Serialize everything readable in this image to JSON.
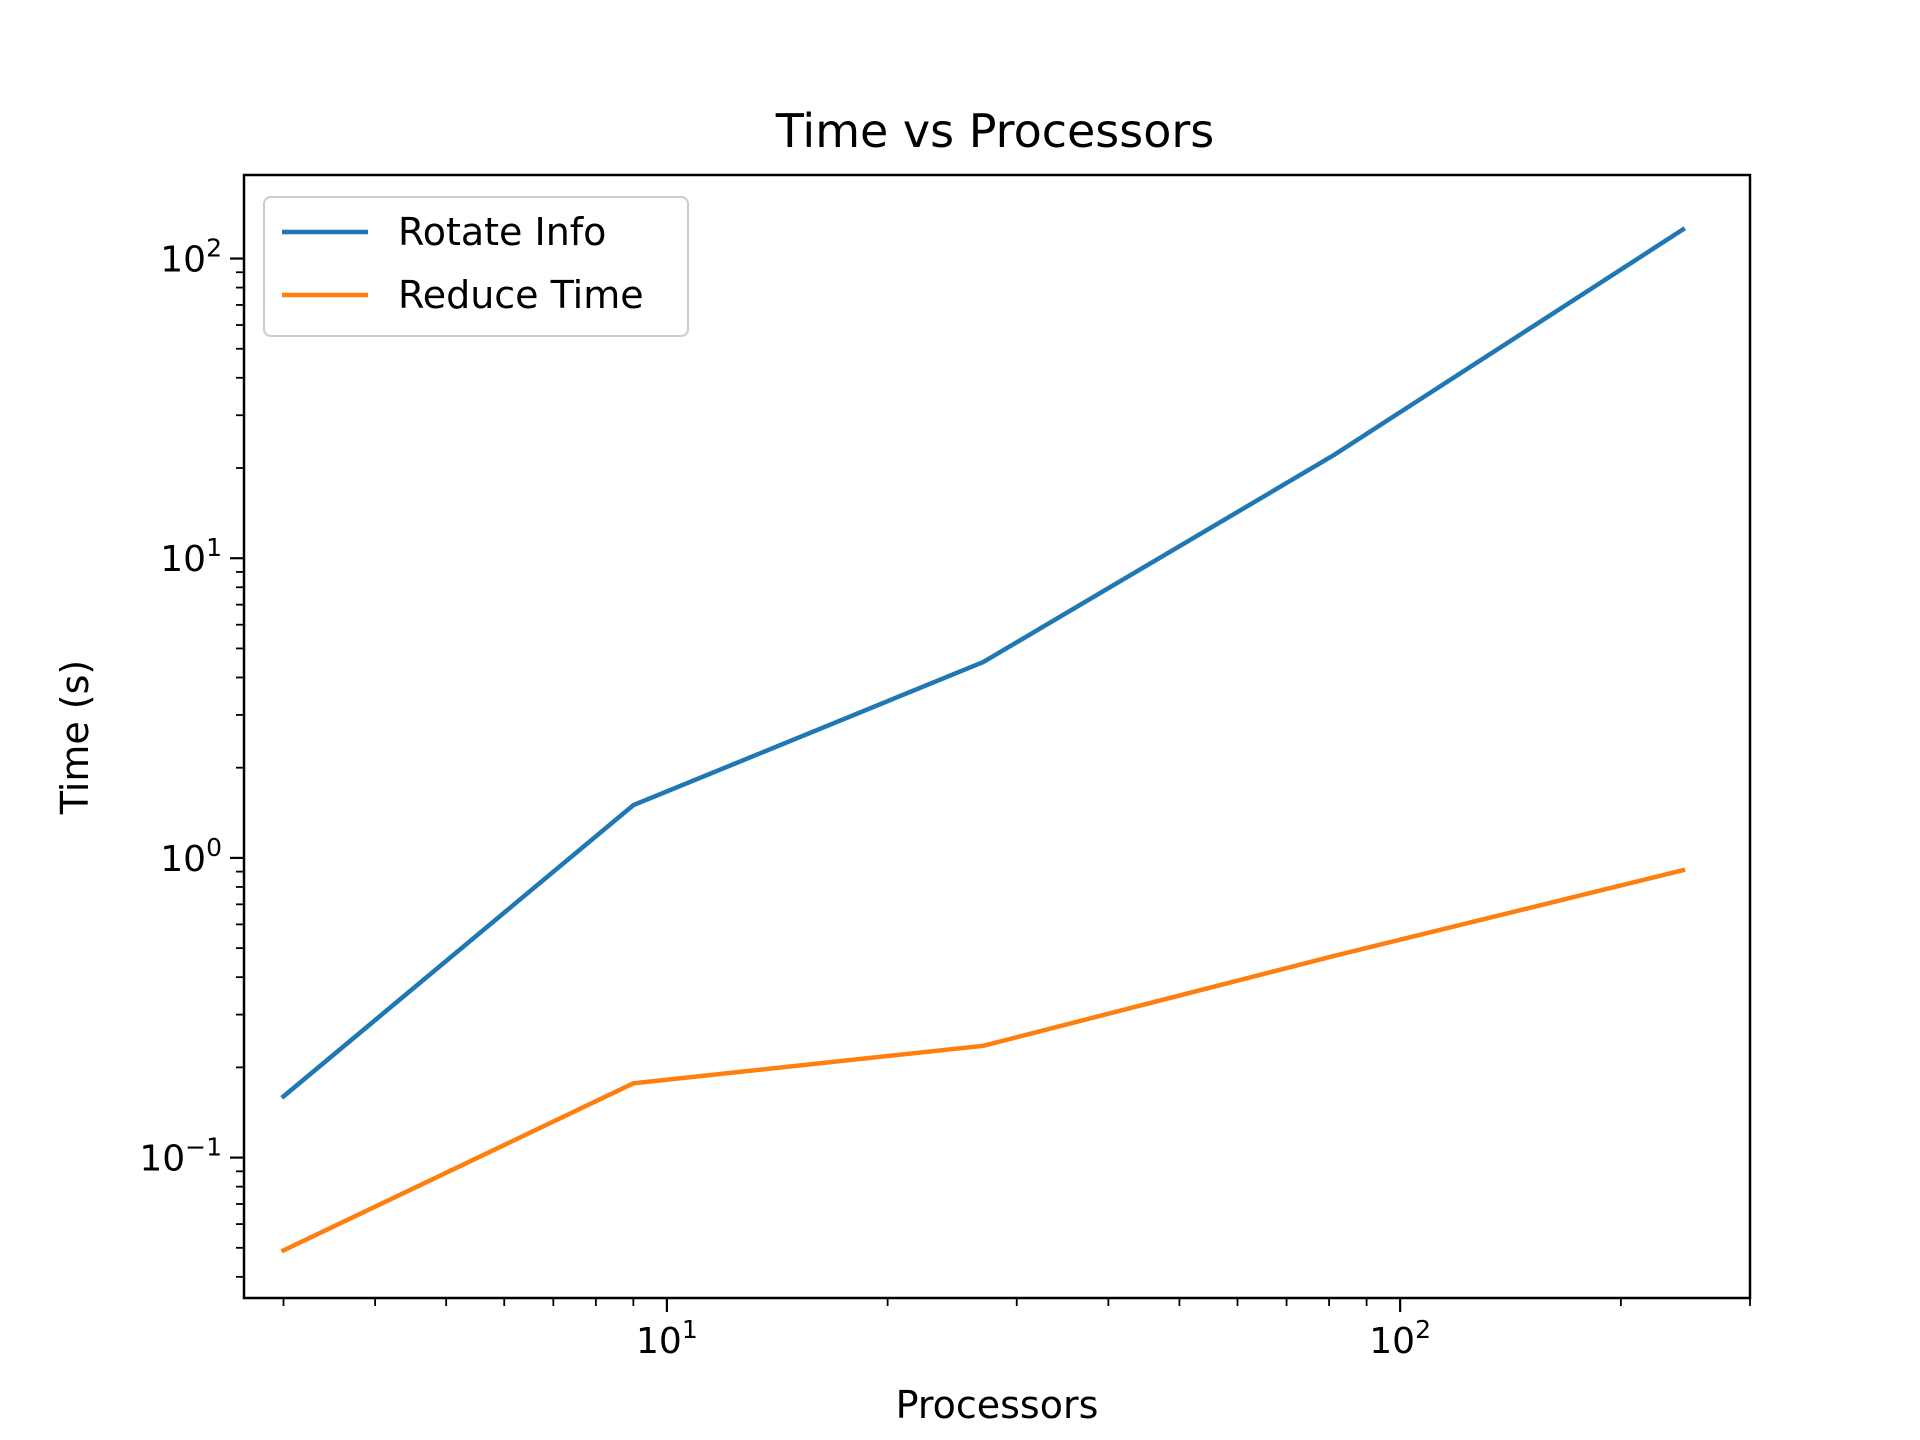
{
  "chart_data": {
    "type": "line",
    "title": "Time vs Processors",
    "xlabel": "Processors",
    "ylabel": "Time (s)",
    "xscale": "log",
    "yscale": "log",
    "xlim": [
      2.65,
      300
    ],
    "ylim": [
      0.034,
      190
    ],
    "x_ticks": [
      {
        "base": "10",
        "exp": "1",
        "value": 10
      },
      {
        "base": "10",
        "exp": "2",
        "value": 100
      }
    ],
    "y_ticks": [
      {
        "base": "10",
        "exp": "2",
        "value": 100
      },
      {
        "base": "10",
        "exp": "1",
        "value": 10
      },
      {
        "base": "10",
        "exp": "0",
        "value": 1
      },
      {
        "base": "10",
        "exp": "−1",
        "value": 0.1
      }
    ],
    "grid": false,
    "legend_position": "top-left",
    "series": [
      {
        "name": "Rotate Info",
        "color": "#1f77b4",
        "x": [
          3,
          9,
          27,
          81,
          243
        ],
        "y": [
          0.16,
          1.5,
          4.5,
          22,
          125
        ]
      },
      {
        "name": "Reduce Time",
        "color": "#ff7f0e",
        "x": [
          3,
          9,
          27,
          81,
          243
        ],
        "y": [
          0.049,
          0.177,
          0.236,
          0.47,
          0.91
        ]
      }
    ]
  }
}
